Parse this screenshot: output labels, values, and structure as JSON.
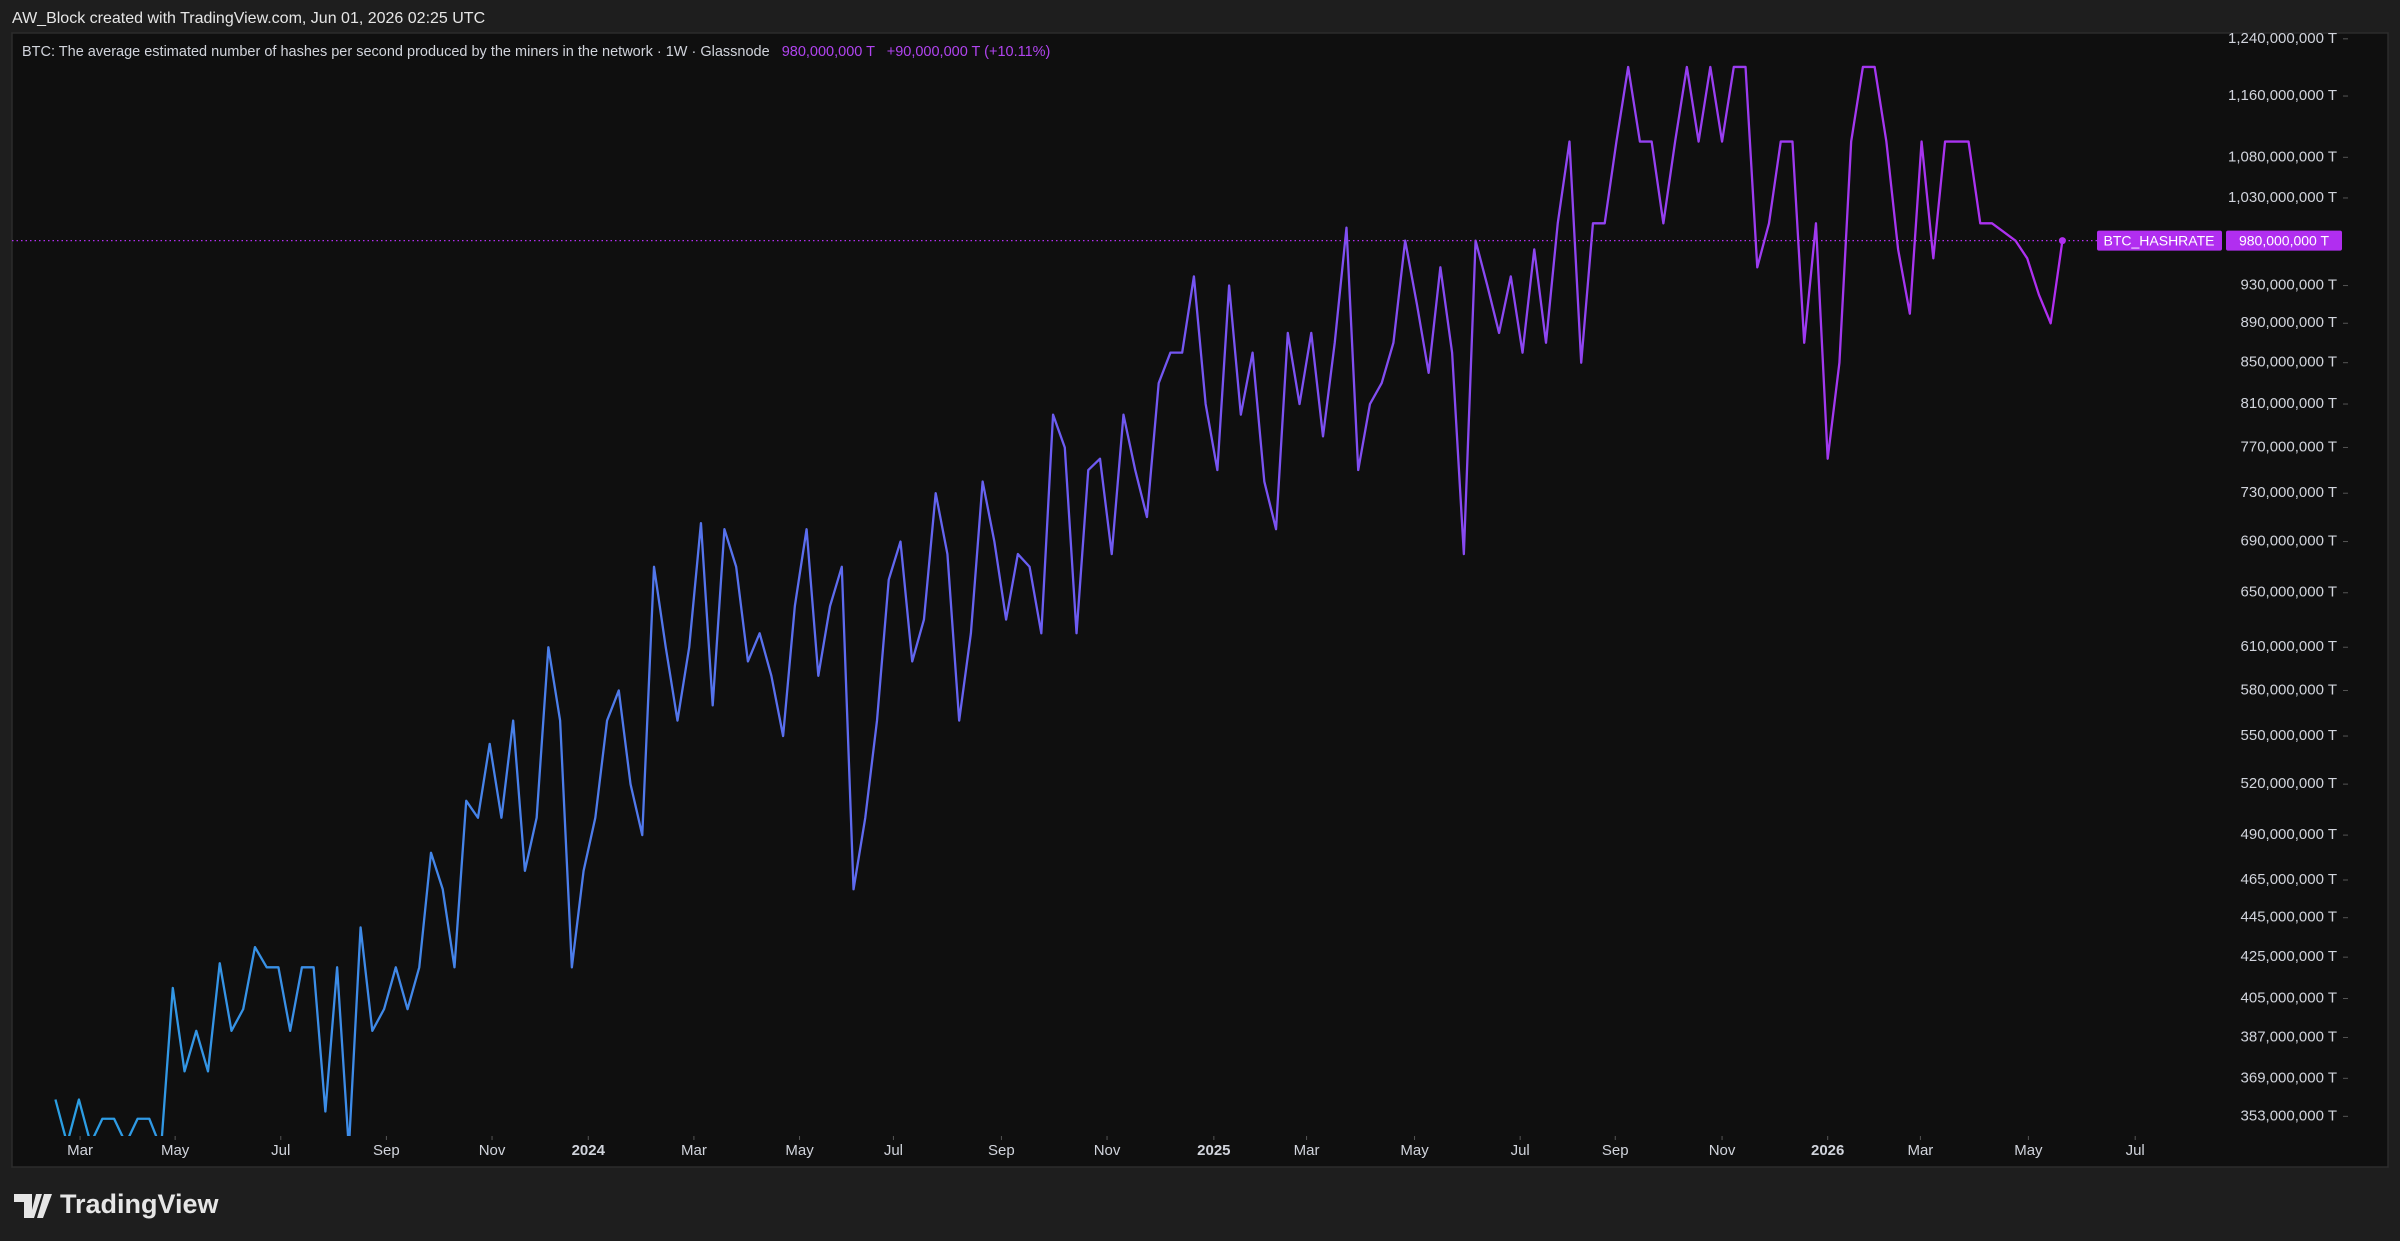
{
  "header": {
    "attribution": "AW_Block created with TradingView.com, Jun 01, 2026 02:25 UTC"
  },
  "footer": {
    "brand": "TradingView"
  },
  "chart_data": {
    "type": "line",
    "legend_text": "BTC: The average estimated number of hashes per second produced by the miners in the network · 1W · Glassnode",
    "last_value_label": "980,000,000 T",
    "change_label": "+90,000,000 T (+10.11%)",
    "log_scale": true,
    "grid": false,
    "gradient": [
      "#2a9fe3",
      "#6c5cf2",
      "#b12ef0"
    ],
    "series": [
      {
        "name": "BTC_HASHRATE",
        "color": "#b12ef0",
        "values": [
          360000000,
          342000000,
          360000000,
          342000000,
          352000000,
          352000000,
          342000000,
          352000000,
          352000000,
          340000000,
          410000000,
          372000000,
          390000000,
          372000000,
          422000000,
          390000000,
          400000000,
          430000000,
          420000000,
          420000000,
          390000000,
          420000000,
          420000000,
          355000000,
          420000000,
          340000000,
          440000000,
          390000000,
          400000000,
          420000000,
          400000000,
          420000000,
          480000000,
          460000000,
          420000000,
          510000000,
          500000000,
          545000000,
          500000000,
          560000000,
          470000000,
          500000000,
          610000000,
          560000000,
          420000000,
          470000000,
          500000000,
          560000000,
          580000000,
          520000000,
          490000000,
          670000000,
          610000000,
          560000000,
          610000000,
          705000000,
          570000000,
          700000000,
          670000000,
          600000000,
          620000000,
          590000000,
          550000000,
          640000000,
          700000000,
          590000000,
          640000000,
          670000000,
          460000000,
          500000000,
          560000000,
          660000000,
          690000000,
          600000000,
          630000000,
          730000000,
          680000000,
          560000000,
          620000000,
          740000000,
          690000000,
          630000000,
          680000000,
          670000000,
          620000000,
          800000000,
          770000000,
          620000000,
          750000000,
          760000000,
          680000000,
          800000000,
          750000000,
          710000000,
          830000000,
          860000000,
          860000000,
          940000000,
          810000000,
          750000000,
          930000000,
          800000000,
          860000000,
          740000000,
          700000000,
          880000000,
          810000000,
          880000000,
          780000000,
          870000000,
          995000000,
          750000000,
          810000000,
          830000000,
          870000000,
          980000000,
          910000000,
          840000000,
          950000000,
          860000000,
          680000000,
          980000000,
          930000000,
          880000000,
          940000000,
          860000000,
          970000000,
          870000000,
          1000000000,
          1100000000,
          850000000,
          1000000000,
          1000000000,
          1100000000,
          1200000000,
          1100000000,
          1100000000,
          1000000000,
          1100000000,
          1200000000,
          1100000000,
          1200000000,
          1100000000,
          1200000000,
          1200000000,
          950000000,
          1000000000,
          1100000000,
          1100000000,
          870000000,
          1000000000,
          760000000,
          850000000,
          1100000000,
          1200000000,
          1200000000,
          1100000000,
          970000000,
          900000000,
          1100000000,
          960000000,
          1100000000,
          1100000000,
          1100000000,
          1000000000,
          1000000000,
          990000000,
          980000000,
          960000000,
          920000000,
          890000000,
          980000000
        ]
      }
    ],
    "xlim": [
      -3.7,
      184
    ],
    "xticks": [
      {
        "value": 2.1,
        "label": "Mar"
      },
      {
        "value": 10.2,
        "label": "May"
      },
      {
        "value": 19.2,
        "label": "Jul"
      },
      {
        "value": 28.2,
        "label": "Sep"
      },
      {
        "value": 37.2,
        "label": "Nov"
      },
      {
        "value": 45.4,
        "label": "2024"
      },
      {
        "value": 54.4,
        "label": "Mar"
      },
      {
        "value": 63.4,
        "label": "May"
      },
      {
        "value": 71.4,
        "label": "Jul"
      },
      {
        "value": 80.6,
        "label": "Sep"
      },
      {
        "value": 89.6,
        "label": "Nov"
      },
      {
        "value": 98.7,
        "label": "2025"
      },
      {
        "value": 106.6,
        "label": "Mar"
      },
      {
        "value": 115.8,
        "label": "May"
      },
      {
        "value": 124.8,
        "label": "Jul"
      },
      {
        "value": 132.9,
        "label": "Sep"
      },
      {
        "value": 142.0,
        "label": "Nov"
      },
      {
        "value": 151.0,
        "label": "2026"
      },
      {
        "value": 158.9,
        "label": "Mar"
      },
      {
        "value": 168.1,
        "label": "May"
      },
      {
        "value": 177.2,
        "label": "Jul"
      }
    ],
    "ylim": [
      345000000,
      1247000000
    ],
    "yticks": [
      {
        "value": 1240000000,
        "label": "1,240,000,000 T"
      },
      {
        "value": 1160000000,
        "label": "1,160,000,000 T"
      },
      {
        "value": 1080000000,
        "label": "1,080,000,000 T"
      },
      {
        "value": 1030000000,
        "label": "1,030,000,000 T"
      },
      {
        "value": 930000000,
        "label": "930,000,000 T"
      },
      {
        "value": 890000000,
        "label": "890,000,000 T"
      },
      {
        "value": 850000000,
        "label": "850,000,000 T"
      },
      {
        "value": 810000000,
        "label": "810,000,000 T"
      },
      {
        "value": 770000000,
        "label": "770,000,000 T"
      },
      {
        "value": 730000000,
        "label": "730,000,000 T"
      },
      {
        "value": 690000000,
        "label": "690,000,000 T"
      },
      {
        "value": 650000000,
        "label": "650,000,000 T"
      },
      {
        "value": 610000000,
        "label": "610,000,000 T"
      },
      {
        "value": 580000000,
        "label": "580,000,000 T"
      },
      {
        "value": 550000000,
        "label": "550,000,000 T"
      },
      {
        "value": 520000000,
        "label": "520,000,000 T"
      },
      {
        "value": 490000000,
        "label": "490,000,000 T"
      },
      {
        "value": 465000000,
        "label": "465,000,000 T"
      },
      {
        "value": 445000000,
        "label": "445,000,000 T"
      },
      {
        "value": 425000000,
        "label": "425,000,000 T"
      },
      {
        "value": 405000000,
        "label": "405,000,000 T"
      },
      {
        "value": 387000000,
        "label": "387,000,000 T"
      },
      {
        "value": 369000000,
        "label": "369,000,000 T"
      },
      {
        "value": 353000000,
        "label": "353,000,000 T"
      }
    ]
  }
}
